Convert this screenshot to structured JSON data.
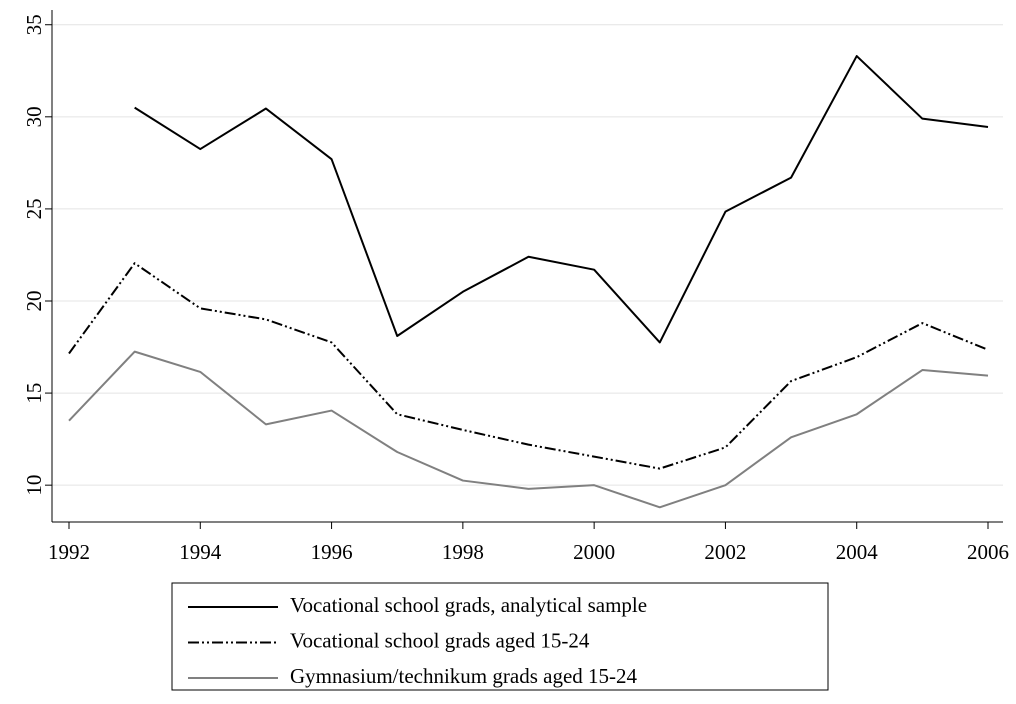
{
  "chart_data": {
    "type": "line",
    "x": [
      1992,
      1993,
      1994,
      1995,
      1996,
      1997,
      1998,
      1999,
      2000,
      2001,
      2002,
      2003,
      2004,
      2005,
      2006
    ],
    "series": [
      {
        "name": "Vocational school grads, analytical sample",
        "color": "#000000",
        "style": "solid",
        "values": [
          null,
          30.5,
          28.25,
          30.45,
          27.7,
          18.1,
          20.5,
          22.4,
          21.7,
          17.75,
          24.85,
          26.7,
          33.3,
          29.9,
          29.45
        ]
      },
      {
        "name": "Vocational school grads aged 15-24",
        "color": "#000000",
        "style": "dashdot",
        "values": [
          17.15,
          22.05,
          19.6,
          19.0,
          17.75,
          13.85,
          13.0,
          12.2,
          11.55,
          10.9,
          12.05,
          15.65,
          16.95,
          18.8,
          17.35
        ]
      },
      {
        "name": "Gymnasium/technikum grads aged 15-24",
        "color": "#808080",
        "style": "solid",
        "values": [
          13.5,
          17.25,
          16.15,
          13.3,
          14.05,
          11.8,
          10.25,
          9.8,
          10.0,
          8.8,
          10.0,
          12.6,
          13.85,
          16.25,
          15.95
        ]
      }
    ],
    "xlim": [
      1992,
      2006
    ],
    "xticks": [
      1992,
      1994,
      1996,
      1998,
      2000,
      2002,
      2004,
      2006
    ],
    "ylim": [
      8,
      35.8
    ],
    "yticks": [
      10,
      15,
      20,
      25,
      30,
      35
    ],
    "grid": true,
    "legend": "bottom"
  }
}
